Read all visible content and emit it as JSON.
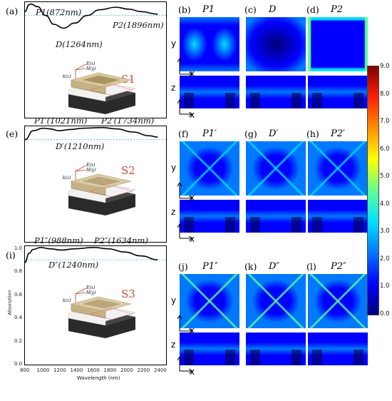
{
  "panels_left": [
    {
      "label": "(a)",
      "annotations": {
        "p1": "P1(872nm)",
        "p2": "P2(1896nm)",
        "d": "D(1264nm)"
      },
      "structure": "S1"
    },
    {
      "label": "(e)",
      "annotations": {
        "p1": "P1′(1021nm)",
        "p2": "P2′(1734nm)",
        "d": "D′(1210nm)"
      },
      "structure": "S2"
    },
    {
      "label": "(i)",
      "annotations": {
        "p1": "P1″(988nm)",
        "p2": "P2″(1634nm)",
        "d": "D″(1240nm)"
      },
      "structure": "S3"
    }
  ],
  "field_axes": {
    "e": "E(x)",
    "h": "H(y)",
    "k": "k(z)"
  },
  "bottom_axis": {
    "ylabel": "Absorption",
    "xlabel": "Wavelength (nm)",
    "xticks": [
      "800",
      "1000",
      "1200",
      "1400",
      "1600",
      "1800",
      "2000",
      "2200",
      "2400"
    ],
    "yticks": [
      "0.0",
      "0.2",
      "0.4",
      "0.6",
      "0.8",
      "1.0"
    ]
  },
  "chart_data": [
    {
      "type": "line",
      "title": "",
      "xlabel": "",
      "ylabel": "",
      "x": [
        800,
        850,
        872,
        950,
        1050,
        1150,
        1264,
        1400,
        1550,
        1700,
        1896,
        2050,
        2200,
        2400
      ],
      "series": [
        {
          "values": [
            0.93,
            0.985,
            0.99,
            0.97,
            0.9,
            0.83,
            0.8,
            0.84,
            0.9,
            0.945,
            0.965,
            0.95,
            0.93,
            0.91
          ]
        }
      ]
    },
    {
      "type": "line",
      "title": "",
      "xlabel": "",
      "ylabel": "",
      "x": [
        800,
        900,
        1021,
        1100,
        1210,
        1350,
        1500,
        1734,
        1900,
        2100,
        2300,
        2400
      ],
      "series": [
        {
          "values": [
            0.9,
            0.97,
            0.99,
            0.985,
            0.97,
            0.98,
            0.99,
            0.995,
            0.985,
            0.96,
            0.93,
            0.92
          ]
        }
      ]
    },
    {
      "type": "line",
      "title": "",
      "xlabel": "Wavelength (nm)",
      "ylabel": "Absorption",
      "x": [
        800,
        850,
        900,
        988,
        1100,
        1240,
        1400,
        1634,
        1800,
        2000,
        2200,
        2400
      ],
      "xlim": [
        800,
        2500
      ],
      "ylim": [
        0.0,
        1.0
      ],
      "series": [
        {
          "values": [
            0.88,
            0.95,
            0.98,
            0.995,
            0.985,
            0.975,
            0.985,
            0.995,
            0.985,
            0.96,
            0.93,
            0.9
          ]
        }
      ]
    }
  ],
  "maps": [
    {
      "label": "(b)",
      "title": "P1"
    },
    {
      "label": "(c)",
      "title": "D"
    },
    {
      "label": "(d)",
      "title": "P2"
    },
    {
      "label": "(f)",
      "title": "P1′"
    },
    {
      "label": "(g)",
      "title": "D′"
    },
    {
      "label": "(h)",
      "title": "P2′"
    },
    {
      "label": "(j)",
      "title": "P1″"
    },
    {
      "label": "(k)",
      "title": "D″"
    },
    {
      "label": "(l)",
      "title": "P2″"
    }
  ],
  "map_axes": {
    "y": "y",
    "x": "x",
    "z": "z"
  },
  "colorbar": {
    "ticks": [
      "9.0",
      "8.0",
      "7.0",
      "6.0",
      "5.0",
      "4.0",
      "3.0",
      "2.0",
      "1.0",
      "0.0"
    ],
    "colors": [
      "#00007a",
      "#0000ff",
      "#0078ff",
      "#00e0ff",
      "#60ff90",
      "#ffff00",
      "#ff9000",
      "#ff2000",
      "#800000"
    ]
  }
}
